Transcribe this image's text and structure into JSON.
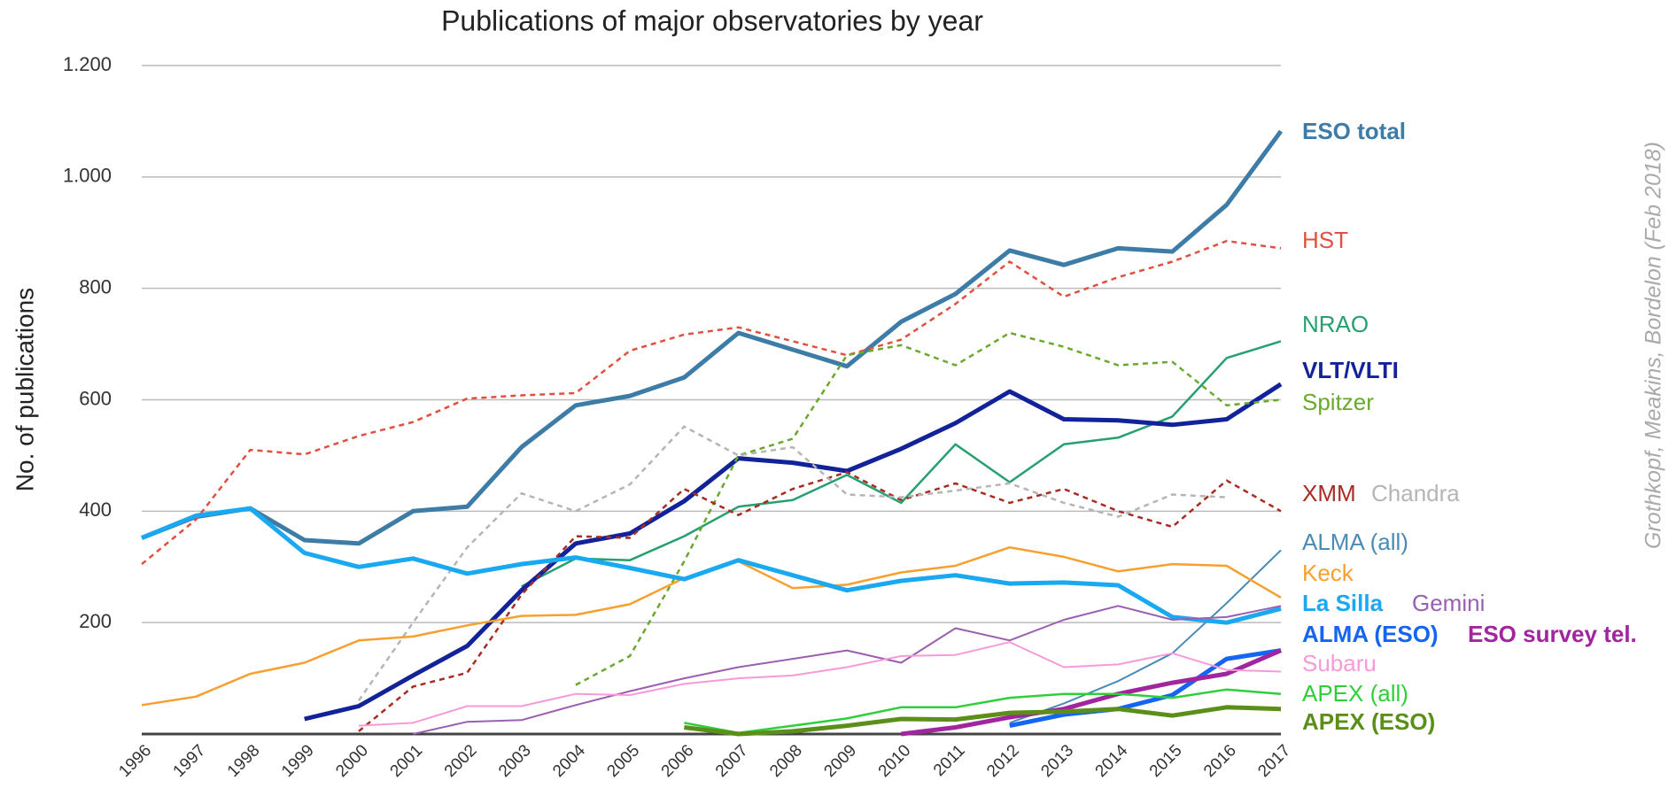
{
  "chart_data": {
    "type": "line",
    "title": "Publications of major observatories by year",
    "y_label": "No. of publications",
    "note": "Grothkopf, Meakins, Bordelon (Feb 2018)",
    "categories": [
      "1996",
      "1997",
      "1998",
      "1999",
      "2000",
      "2001",
      "2002",
      "2003",
      "2004",
      "2005",
      "2006",
      "2007",
      "2008",
      "2009",
      "2010",
      "2011",
      "2012",
      "2013",
      "2014",
      "2015",
      "2016",
      "2017"
    ],
    "ylim": [
      0,
      1200
    ],
    "yticks": [
      200,
      400,
      600,
      800,
      {
        "value": 1000,
        "label": "1.000"
      },
      {
        "value": 1200,
        "label": "1.200"
      }
    ],
    "grid": true,
    "series": [
      {
        "name": "ESO total",
        "color": "#3d7ca6",
        "width": 5,
        "dashed": false,
        "values": [
          352,
          390,
          405,
          348,
          342,
          400,
          408,
          515,
          590,
          607,
          640,
          720,
          690,
          660,
          740,
          790,
          868,
          842,
          872,
          866,
          950,
          1082
        ]
      },
      {
        "name": "HST",
        "color": "#e0503f",
        "width": 2.5,
        "dashed": true,
        "values": [
          305,
          385,
          510,
          502,
          535,
          560,
          602,
          608,
          612,
          688,
          717,
          730,
          705,
          680,
          708,
          772,
          848,
          785,
          820,
          848,
          885,
          872
        ]
      },
      {
        "name": "NRAO",
        "color": "#26a06e",
        "width": 2.5,
        "dashed": false,
        "values": [
          null,
          null,
          null,
          null,
          null,
          null,
          null,
          265,
          315,
          312,
          355,
          408,
          420,
          465,
          415,
          520,
          452,
          520,
          532,
          570,
          675,
          705
        ]
      },
      {
        "name": "VLT/VLTI",
        "color": "#12239a",
        "width": 5,
        "dashed": false,
        "values": [
          null,
          null,
          null,
          27,
          50,
          105,
          158,
          258,
          342,
          360,
          418,
          495,
          487,
          472,
          512,
          558,
          615,
          565,
          563,
          555,
          565,
          628
        ]
      },
      {
        "name": "Spitzer",
        "color": "#6aa82e",
        "width": 2.5,
        "dashed": true,
        "values": [
          null,
          null,
          null,
          null,
          null,
          null,
          null,
          null,
          88,
          140,
          310,
          500,
          530,
          680,
          698,
          662,
          720,
          695,
          662,
          668,
          590,
          600
        ]
      },
      {
        "name": "XMM",
        "color": "#a82c22",
        "width": 2.5,
        "dashed": true,
        "values": [
          null,
          null,
          null,
          null,
          5,
          85,
          110,
          250,
          355,
          352,
          440,
          393,
          440,
          470,
          420,
          450,
          415,
          440,
          400,
          372,
          455,
          400
        ]
      },
      {
        "name": "Chandra",
        "color": "#b5b5b5",
        "width": 2.5,
        "dashed": true,
        "values": [
          null,
          null,
          null,
          null,
          60,
          200,
          335,
          432,
          400,
          448,
          552,
          500,
          515,
          430,
          425,
          437,
          450,
          415,
          390,
          430,
          425,
          null
        ]
      },
      {
        "name": "ALMA (all)",
        "color": "#4a8bb6",
        "width": 2,
        "dashed": false,
        "values": [
          null,
          null,
          null,
          null,
          null,
          null,
          null,
          null,
          null,
          null,
          null,
          null,
          null,
          null,
          null,
          null,
          20,
          55,
          95,
          145,
          235,
          330
        ]
      },
      {
        "name": "Keck",
        "color": "#f7a030",
        "width": 2.5,
        "dashed": false,
        "values": [
          52,
          67,
          108,
          128,
          168,
          175,
          195,
          212,
          214,
          233,
          280,
          310,
          262,
          268,
          290,
          302,
          335,
          318,
          292,
          305,
          302,
          245
        ]
      },
      {
        "name": "La Silla",
        "color": "#1aa8f0",
        "width": 5,
        "dashed": false,
        "values": [
          352,
          392,
          405,
          325,
          300,
          315,
          288,
          305,
          317,
          298,
          278,
          312,
          285,
          258,
          275,
          285,
          270,
          272,
          267,
          210,
          200,
          225
        ]
      },
      {
        "name": "Gemini",
        "color": "#9a5fb0",
        "width": 2,
        "dashed": false,
        "values": [
          null,
          null,
          null,
          null,
          null,
          0,
          22,
          25,
          52,
          77,
          100,
          120,
          135,
          150,
          128,
          190,
          168,
          205,
          230,
          205,
          210,
          230
        ]
      },
      {
        "name": "ALMA (ESO)",
        "color": "#1565f5",
        "width": 5,
        "dashed": false,
        "values": [
          null,
          null,
          null,
          null,
          null,
          null,
          null,
          null,
          null,
          null,
          null,
          null,
          null,
          null,
          null,
          null,
          15,
          35,
          45,
          70,
          135,
          150
        ]
      },
      {
        "name": "ESO survey tel.",
        "color": "#a0259e",
        "width": 5,
        "dashed": false,
        "values": [
          null,
          null,
          null,
          null,
          null,
          null,
          null,
          null,
          null,
          null,
          null,
          null,
          null,
          null,
          0,
          12,
          30,
          45,
          72,
          92,
          108,
          150
        ]
      },
      {
        "name": "Subaru",
        "color": "#f79ad8",
        "width": 2,
        "dashed": false,
        "values": [
          null,
          null,
          null,
          null,
          15,
          20,
          50,
          50,
          72,
          70,
          90,
          100,
          105,
          120,
          140,
          142,
          165,
          120,
          125,
          145,
          115,
          112
        ]
      },
      {
        "name": "APEX (all)",
        "color": "#2fcf3a",
        "width": 2.5,
        "dashed": false,
        "values": [
          null,
          null,
          null,
          null,
          null,
          null,
          null,
          null,
          null,
          null,
          20,
          2,
          15,
          28,
          48,
          48,
          65,
          72,
          72,
          65,
          80,
          72
        ]
      },
      {
        "name": "APEX (ESO)",
        "color": "#5b8f1a",
        "width": 5,
        "dashed": false,
        "values": [
          null,
          null,
          null,
          null,
          null,
          null,
          null,
          null,
          null,
          null,
          12,
          0,
          5,
          15,
          27,
          26,
          38,
          40,
          45,
          33,
          48,
          45
        ]
      }
    ]
  }
}
